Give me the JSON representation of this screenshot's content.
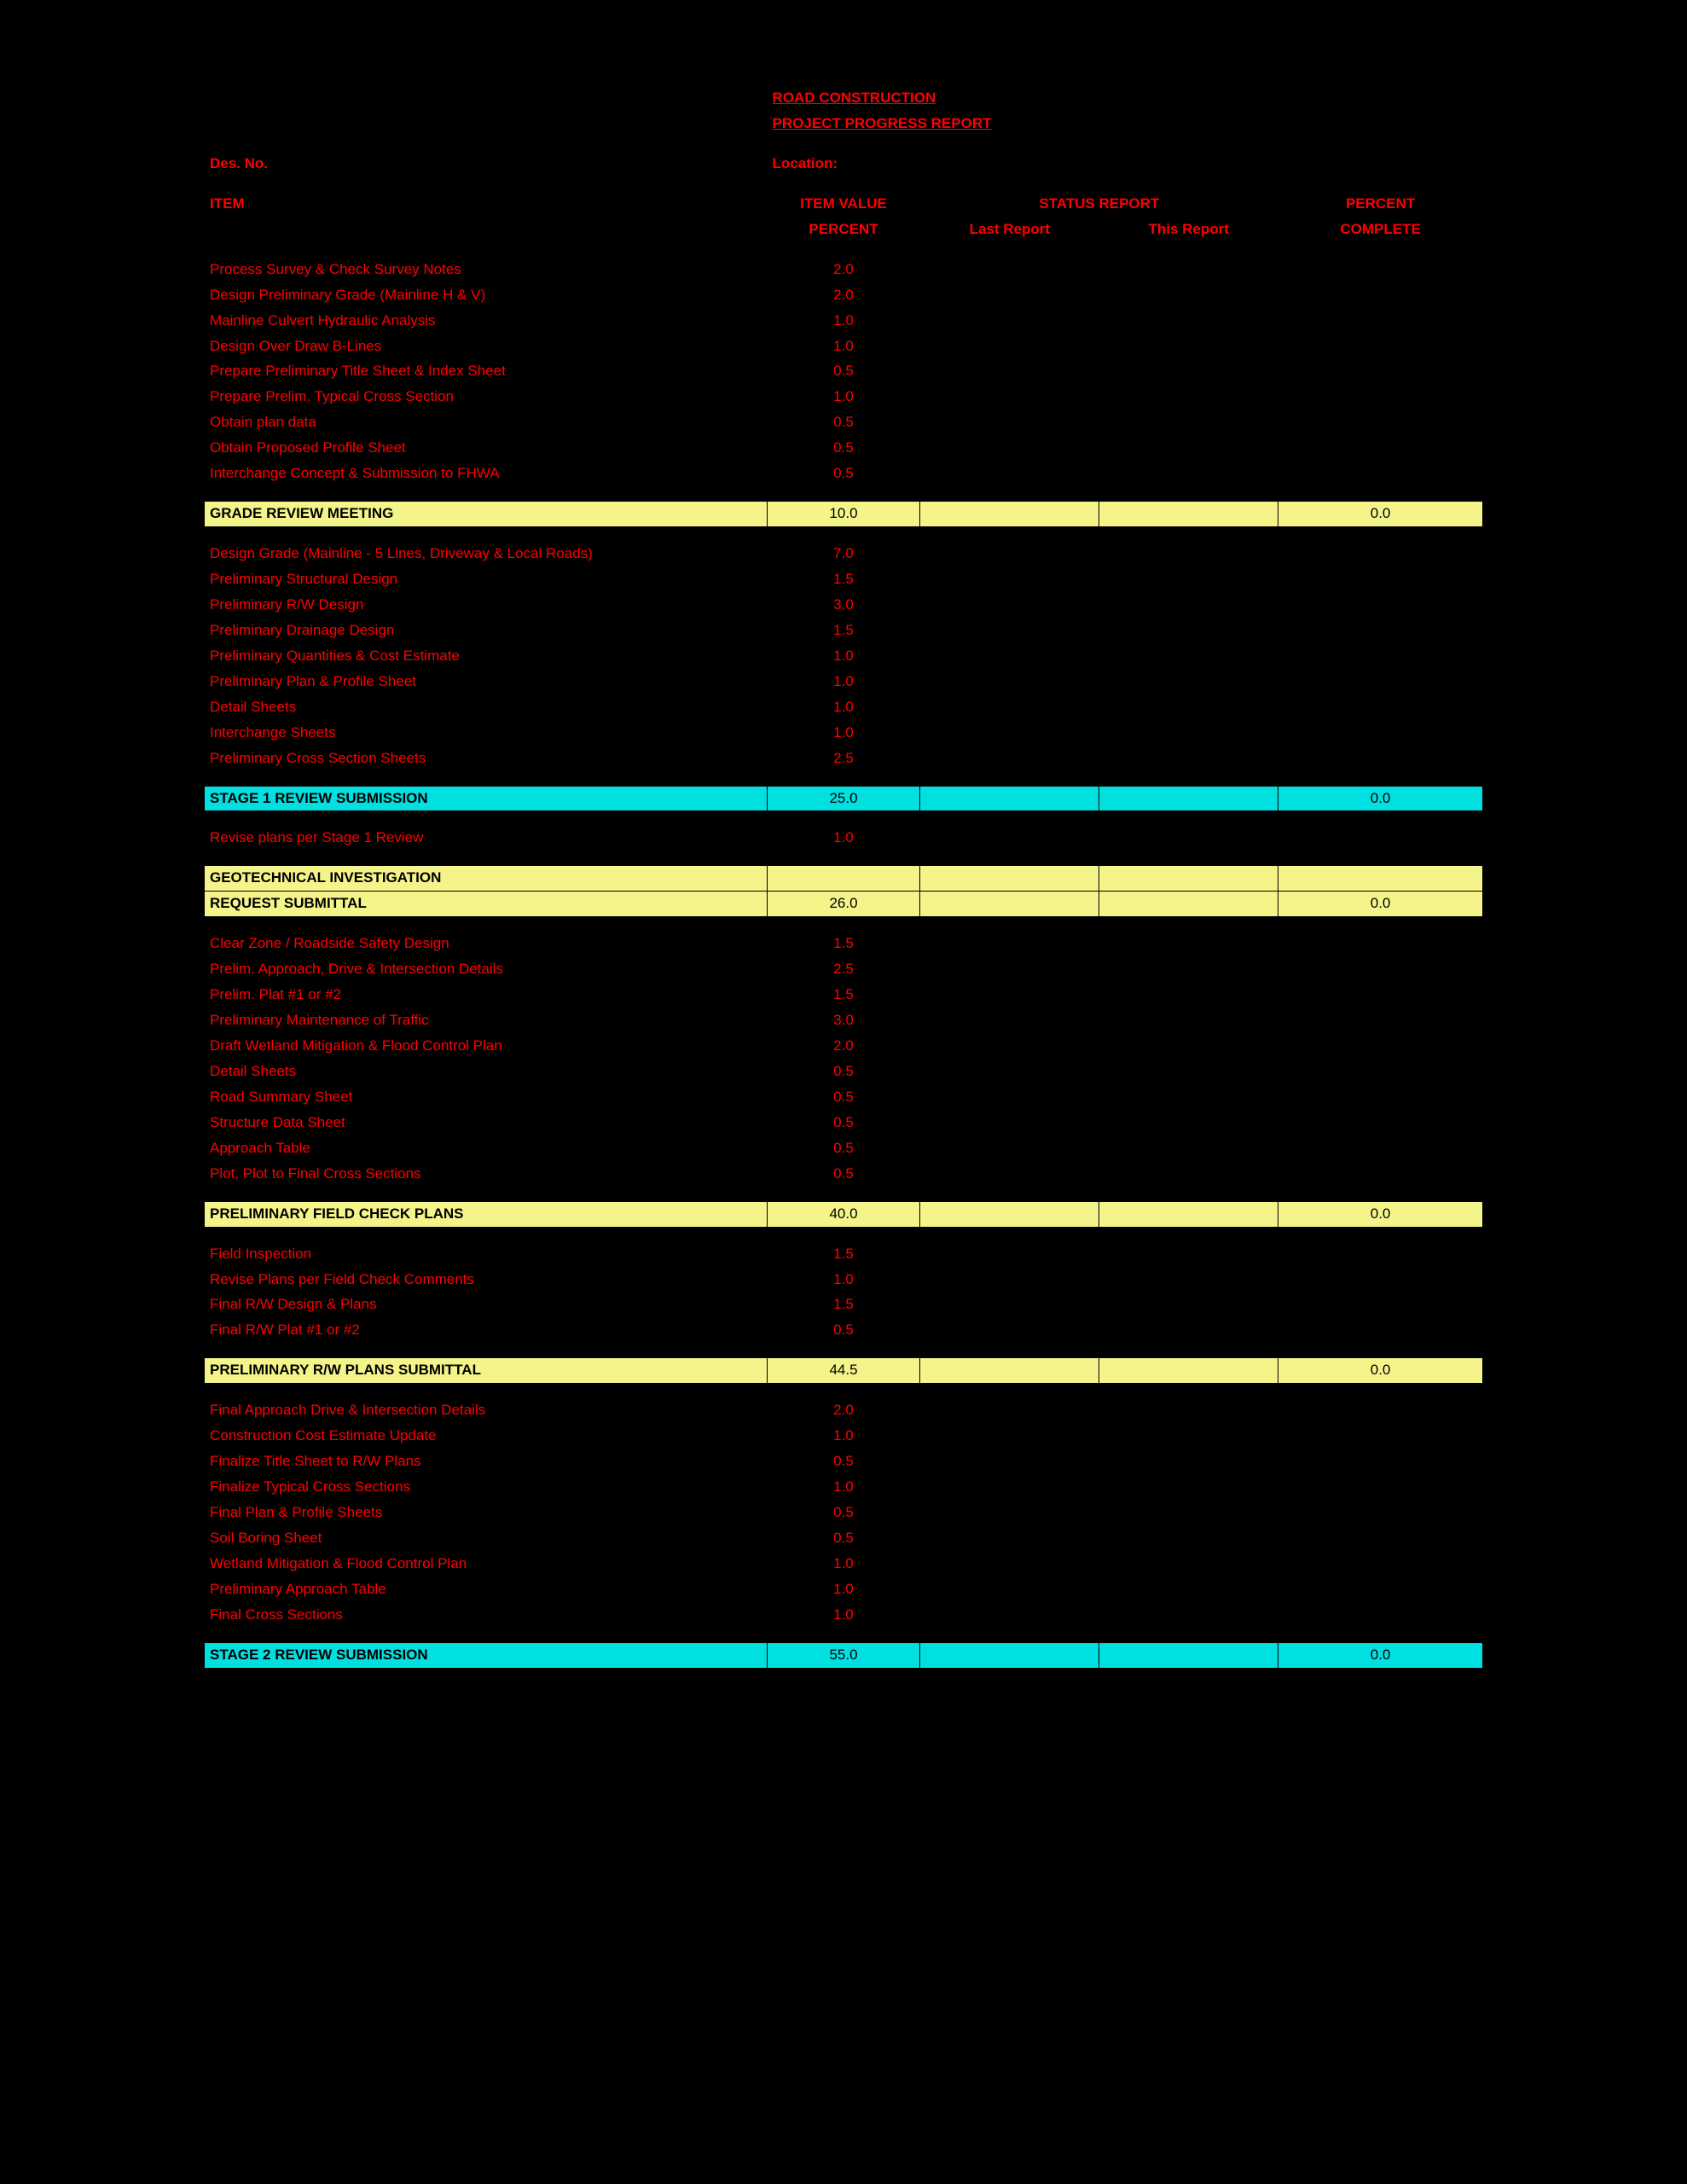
{
  "title1": "ROAD CONSTRUCTION",
  "title2": "PROJECT PROGRESS REPORT",
  "des_label": "Des. No.",
  "loc_label": "Location:",
  "headers": {
    "item": "ITEM",
    "value1": "ITEM VALUE",
    "value2": "PERCENT",
    "status": "STATUS REPORT",
    "last": "Last Report",
    "this": "This Report",
    "pct1": "PERCENT",
    "pct2": "COMPLETE"
  },
  "sections": [
    {
      "items": [
        {
          "label": "Process Survey & Check Survey Notes",
          "val": "2.0"
        },
        {
          "label": "Design Preliminary Grade (Mainline H & V)",
          "val": "2.0"
        },
        {
          "label": "Mainline Culvert Hydraulic Analysis",
          "val": "1.0"
        },
        {
          "label": "Design Over Draw B-Lines",
          "val": "1.0"
        },
        {
          "label": "Prepare Preliminary Title Sheet & Index Sheet",
          "val": "0.5"
        },
        {
          "label": "Prepare Prelim. Typical Cross Section",
          "val": "1.0"
        },
        {
          "label": "Obtain plan data",
          "val": "0.5"
        },
        {
          "label": "Obtain Proposed Profile Sheet",
          "val": "0.5"
        },
        {
          "label": "Interchange Concept & Submission to FHWA",
          "val": "0.5"
        }
      ],
      "milestone": {
        "style": "yellow",
        "label": "GRADE REVIEW MEETING",
        "val": "10.0",
        "pct": "0.0"
      }
    },
    {
      "items": [
        {
          "label": "Design Grade (Mainline - 5 Lines, Driveway & Local Roads)",
          "val": "7.0"
        },
        {
          "label": "Preliminary Structural Design",
          "val": "1.5"
        },
        {
          "label": "Preliminary R/W Design",
          "val": "3.0"
        },
        {
          "label": "Preliminary Drainage Design",
          "val": "1.5"
        },
        {
          "label": "Preliminary Quantities & Cost Estimate",
          "val": "1.0"
        },
        {
          "label": "Preliminary Plan & Profile Sheet",
          "val": "1.0"
        },
        {
          "label": "Detail Sheets",
          "val": "1.0"
        },
        {
          "label": "Interchange Sheets",
          "val": "1.0"
        },
        {
          "label": "Preliminary Cross Section Sheets",
          "val": "2.5"
        }
      ],
      "milestone": {
        "style": "cyan",
        "label": "STAGE 1 REVIEW SUBMISSION",
        "val": "25.0",
        "pct": "0.0"
      }
    },
    {
      "items": [
        {
          "label": "Revise plans per Stage 1 Review",
          "val": "1.0"
        }
      ],
      "milestone": {
        "style": "yellow",
        "label": "GEOTECHNICAL INVESTIGATION\nREQUEST SUBMITTAL",
        "val": "26.0",
        "pct": "0.0"
      }
    },
    {
      "items": [
        {
          "label": "Clear Zone / Roadside Safety Design",
          "val": "1.5"
        },
        {
          "label": "Prelim. Approach, Drive & Intersection Details",
          "val": "2.5"
        },
        {
          "label": "Prelim. Plat #1 or #2",
          "val": "1.5"
        },
        {
          "label": "Preliminary Maintenance of Traffic",
          "val": "3.0"
        },
        {
          "label": "Draft Wetland Mitigation & Flood Control Plan",
          "val": "2.0"
        },
        {
          "label": "Detail Sheets",
          "val": "0.5"
        },
        {
          "label": "Road Summary Sheet",
          "val": "0.5"
        },
        {
          "label": "Structure Data Sheet",
          "val": "0.5"
        },
        {
          "label": "Approach Table",
          "val": "0.5"
        },
        {
          "label": "Plot, Plot to Final Cross Sections",
          "val": "0.5"
        }
      ],
      "milestone": {
        "style": "yellow",
        "label": "PRELIMINARY FIELD CHECK PLANS",
        "val": "40.0",
        "pct": "0.0"
      }
    },
    {
      "items": [
        {
          "label": "Field Inspection",
          "val": "1.5"
        },
        {
          "label": "Revise Plans per Field Check Comments",
          "val": "1.0"
        },
        {
          "label": "Final R/W Design & Plans",
          "val": "1.5"
        },
        {
          "label": "Final R/W Plat #1 or #2",
          "val": "0.5"
        }
      ],
      "milestone": {
        "style": "yellow",
        "label": "PRELIMINARY R/W PLANS SUBMITTAL",
        "val": "44.5",
        "pct": "0.0"
      }
    },
    {
      "items": [
        {
          "label": "Final Approach Drive & Intersection Details",
          "val": "2.0"
        },
        {
          "label": "Construction Cost Estimate Update",
          "val": "1.0"
        },
        {
          "label": "Finalize Title Sheet to R/W Plans",
          "val": "0.5"
        },
        {
          "label": "Finalize Typical Cross Sections",
          "val": "1.0"
        },
        {
          "label": "Final Plan & Profile Sheets",
          "val": "0.5"
        },
        {
          "label": "Soil Boring Sheet",
          "val": "0.5"
        },
        {
          "label": "Wetland Mitigation & Flood Control Plan",
          "val": "1.0"
        },
        {
          "label": "Preliminary Approach Table",
          "val": "1.0"
        },
        {
          "label": "Final Cross Sections",
          "val": "1.0"
        }
      ],
      "milestone": {
        "style": "cyan",
        "label": "STAGE 2 REVIEW SUBMISSION",
        "val": "55.0",
        "pct": "0.0"
      }
    }
  ],
  "colors": {
    "background": "#000000",
    "text": "#ff0000",
    "yellow": "#f4f48a",
    "cyan": "#00e0e0",
    "milestone_text": "#000000"
  },
  "font_size_pt": 13
}
